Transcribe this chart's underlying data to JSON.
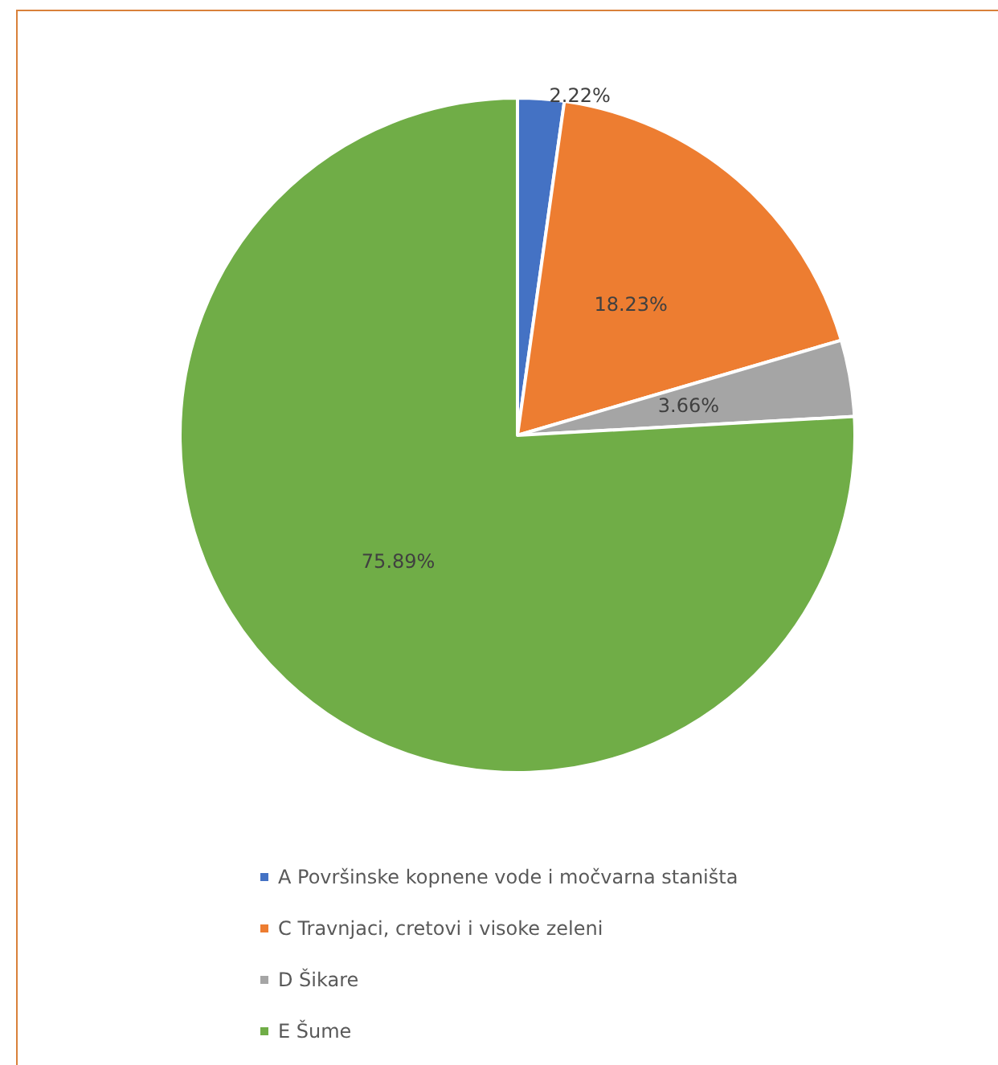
{
  "chart_data": {
    "type": "pie",
    "categories": [
      "A Površinske kopnene vode i močvarna staništa",
      "C Travnjaci, cretovi i visoke zeleni",
      "D Šikare",
      "E Šume"
    ],
    "values": [
      2.22,
      18.23,
      3.66,
      75.89
    ],
    "colors": [
      "#4472c4",
      "#ed7d31",
      "#a5a5a5",
      "#70ad47"
    ],
    "value_labels": [
      "2.22%",
      "18.23%",
      "3.66%",
      "75.89%"
    ],
    "legend": "bottom"
  }
}
